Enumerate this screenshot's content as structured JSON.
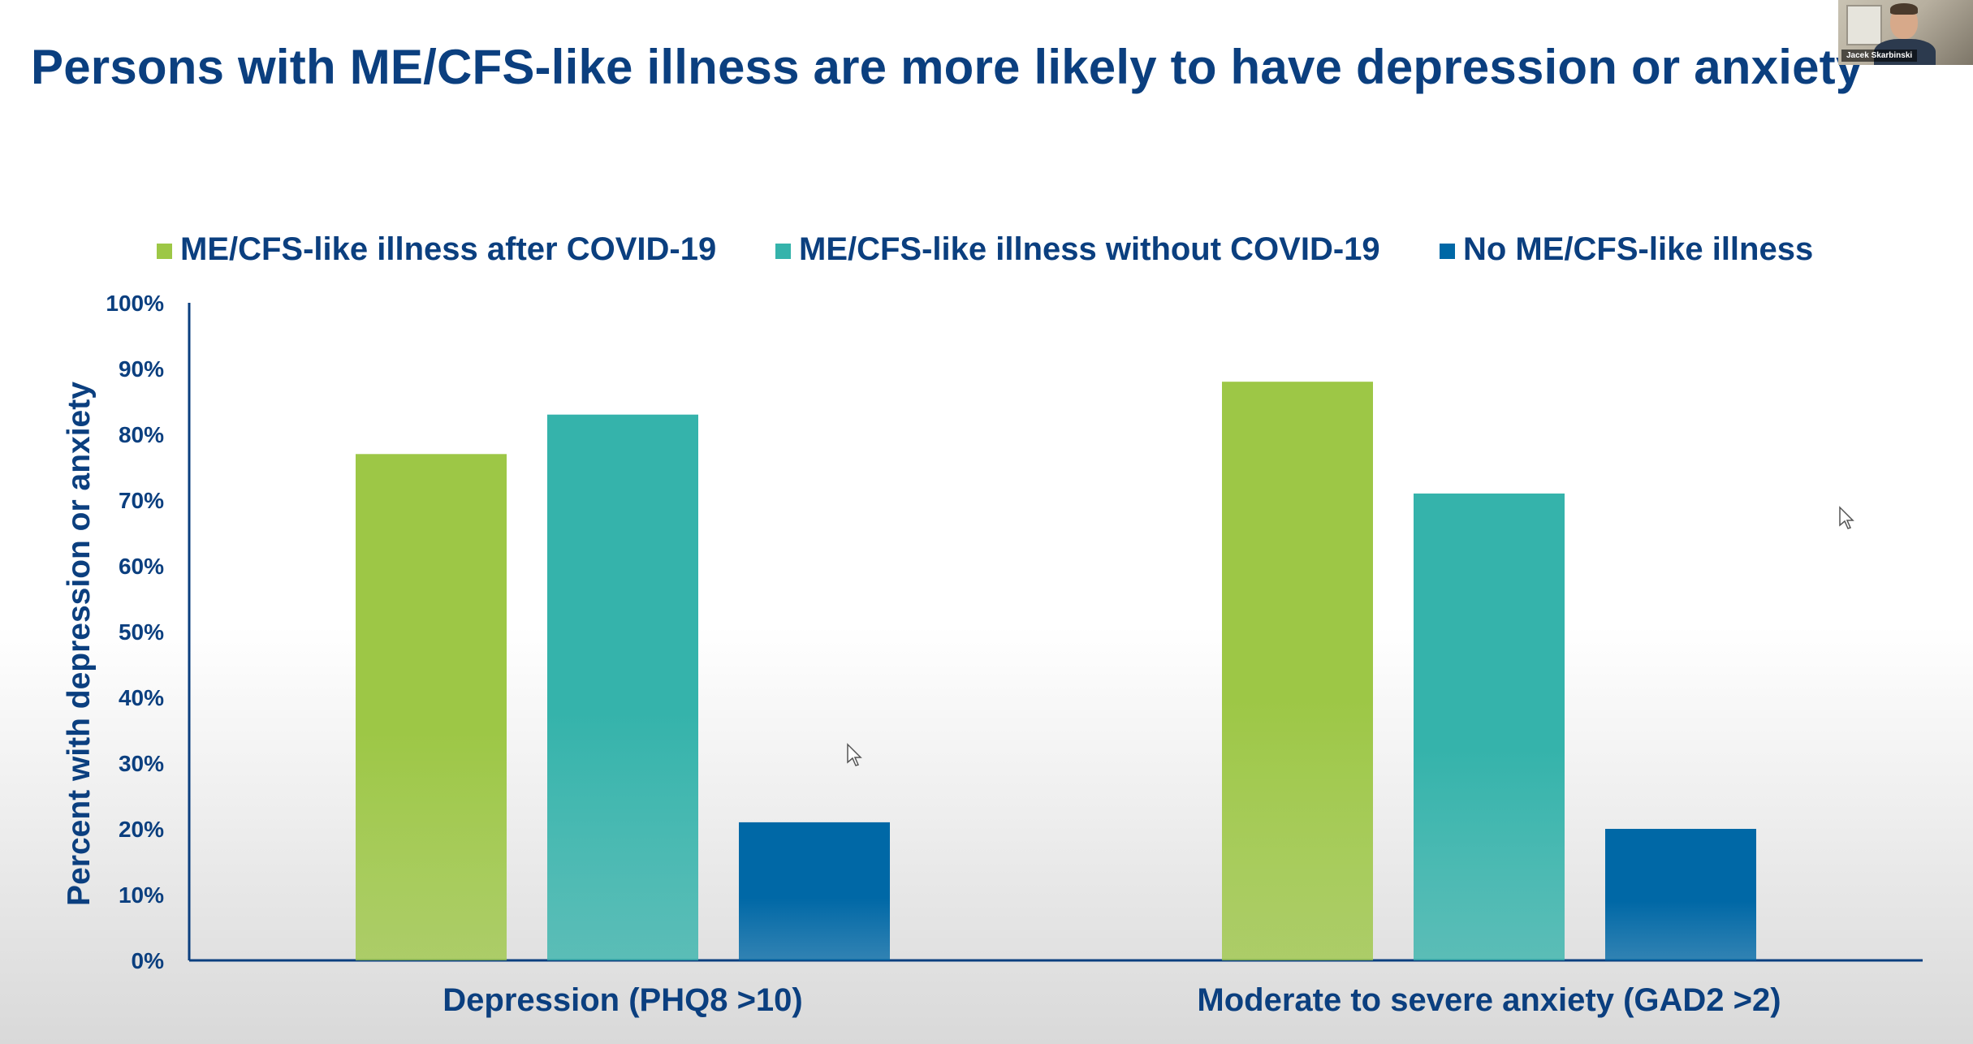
{
  "slide": {
    "title": "Persons with ME/CFS-like illness are more likely to have depression or anxiety"
  },
  "webcam": {
    "name": "Jacek Skarbinski"
  },
  "colors": {
    "title": "#0b3f7f",
    "axis_text": "#0b3f7f",
    "series": [
      "#9dc746",
      "#35b3ab",
      "#0068a6"
    ]
  },
  "chart_data": {
    "type": "bar",
    "title": "",
    "ylabel": "Percent with depression or anxiety",
    "xlabel": "",
    "categories": [
      "Depression (PHQ8 >10)",
      "Moderate to severe anxiety (GAD2 >2)"
    ],
    "series": [
      {
        "name": "ME/CFS-like illness after COVID-19",
        "color": "#9dc746",
        "values": [
          77,
          88
        ]
      },
      {
        "name": "ME/CFS-like illness without COVID-19",
        "color": "#35b3ab",
        "values": [
          83,
          71
        ]
      },
      {
        "name": "No ME/CFS-like illness",
        "color": "#0068a6",
        "values": [
          21,
          20
        ]
      }
    ],
    "ylim": [
      0,
      100
    ],
    "yticks": [
      "0%",
      "10%",
      "20%",
      "30%",
      "40%",
      "50%",
      "60%",
      "70%",
      "80%",
      "90%",
      "100%"
    ],
    "legend_position": "top",
    "grid": false
  }
}
